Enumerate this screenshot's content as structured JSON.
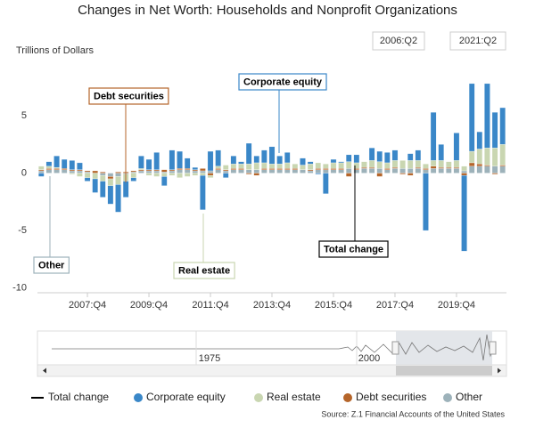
{
  "chart_data": {
    "type": "bar",
    "title": "Changes in Net Worth: Households and Nonprofit Organizations",
    "y_label": "Trillions of Dollars",
    "range": [
      "2006:Q2",
      "2021:Q2"
    ],
    "categories": [
      null,
      null,
      null,
      null,
      null,
      null,
      "2007:Q4",
      null,
      null,
      null,
      null,
      null,
      null,
      null,
      "2009:Q4",
      null,
      null,
      null,
      null,
      null,
      null,
      null,
      "2011:Q4",
      null,
      null,
      null,
      null,
      null,
      null,
      null,
      "2013:Q4",
      null,
      null,
      null,
      null,
      null,
      null,
      null,
      "2015:Q4",
      null,
      null,
      null,
      null,
      null,
      null,
      null,
      "2017:Q4",
      null,
      null,
      null,
      null,
      null,
      null,
      null,
      "2019:Q4",
      null,
      null,
      null,
      null,
      null,
      null
    ],
    "ylim": [
      -10.5,
      9.5
    ],
    "yticks": [
      5,
      0,
      -5,
      -10
    ],
    "series": [
      {
        "name": "Corporate equity",
        "color": "#3a87c8",
        "values": [
          -0.3,
          0.4,
          1.0,
          0.8,
          0.8,
          0.6,
          -0.3,
          -1.2,
          -1.4,
          -1.6,
          -2.4,
          -1.4,
          -0.3,
          1.1,
          0.9,
          1.5,
          -0.8,
          1.7,
          1.5,
          0.9,
          0.2,
          -3.0,
          1.7,
          1.4,
          -0.4,
          0.7,
          0.2,
          1.8,
          0.6,
          1.1,
          1.5,
          0.7,
          0.9,
          0,
          0.6,
          0.2,
          -0.1,
          -1.8,
          0.3,
          0.1,
          0.6,
          0.7,
          0,
          1.1,
          0.9,
          0.9,
          0.9,
          0,
          0.6,
          0.9,
          -5.0,
          4.2,
          1.4,
          0,
          2.4,
          -6.6,
          5.9,
          1.5,
          5.6,
          3.1,
          3.2
        ]
      },
      {
        "name": "Real estate",
        "color": "#c9d6b1",
        "values": [
          0.3,
          0.2,
          0.1,
          0,
          -0.1,
          -0.3,
          -0.4,
          -0.5,
          -0.5,
          -0.6,
          -0.7,
          -0.6,
          -0.4,
          0.1,
          -0.2,
          -0.3,
          -0.3,
          -0.2,
          -0.4,
          -0.3,
          -0.2,
          -0.2,
          -0.2,
          0.2,
          0.4,
          0.4,
          0.4,
          0.5,
          0.6,
          0.5,
          0.4,
          0.4,
          0.5,
          0.4,
          0.4,
          0.5,
          0.5,
          0.4,
          0.5,
          0.5,
          0.6,
          0.5,
          0.5,
          0.6,
          0.6,
          0.5,
          0.6,
          0.7,
          0.7,
          0.6,
          0.4,
          0.5,
          0.6,
          0.5,
          0.6,
          0.4,
          1.0,
          1.3,
          1.5,
          1.6,
          1.8
        ]
      },
      {
        "name": "Debt securities",
        "color": "#b5652a",
        "values": [
          0.1,
          0.1,
          0.1,
          0.1,
          0.1,
          0.1,
          0.1,
          0.2,
          0.1,
          -0.2,
          0.1,
          0.1,
          0.1,
          0.1,
          0.1,
          0.1,
          0.2,
          0.1,
          0.1,
          0.1,
          0.1,
          0.2,
          -0.2,
          0.1,
          0.1,
          0.1,
          0.1,
          -0.1,
          -0.2,
          0.1,
          0.1,
          0.1,
          0.1,
          0.1,
          0,
          0.1,
          0.1,
          0.1,
          0.1,
          0.1,
          -0.3,
          0.1,
          0.1,
          0.1,
          -0.3,
          0.1,
          0.1,
          -0.1,
          -0.2,
          0.1,
          0.1,
          0.2,
          0.1,
          0.1,
          0.1,
          -0.2,
          0.3,
          0.2,
          0.1,
          -0.1,
          0.1
        ]
      },
      {
        "name": "Other",
        "color": "#9db2ba",
        "values": [
          0.2,
          0.3,
          0.3,
          0.3,
          0.2,
          0.2,
          0.1,
          0,
          -0.2,
          -0.3,
          -0.3,
          -0.1,
          0.1,
          0.2,
          0.2,
          0.2,
          0.1,
          0.2,
          0.3,
          0.3,
          0.2,
          0.2,
          0.2,
          0.3,
          0.2,
          0.3,
          0.3,
          0.3,
          0.3,
          0.3,
          0.3,
          0.3,
          0.3,
          0.3,
          0.3,
          0.2,
          0.3,
          0.3,
          0.3,
          0.3,
          0.4,
          0.3,
          0.4,
          0.4,
          0.4,
          0.3,
          0.4,
          0.4,
          0.4,
          0.4,
          0.3,
          0.4,
          0.4,
          0.4,
          0.4,
          0.2,
          0.6,
          0.6,
          0.6,
          0.6,
          0.6
        ]
      }
    ],
    "line_series": {
      "name": "Total change",
      "color": "#000000",
      "values": [
        0.3,
        1.0,
        1.5,
        1.2,
        1.0,
        0.6,
        -0.5,
        -1.5,
        -2.0,
        -2.7,
        -3.3,
        -2.0,
        -0.5,
        1.5,
        1.0,
        1.5,
        -0.8,
        1.8,
        1.5,
        1.0,
        0.3,
        -2.8,
        1.5,
        2.0,
        0.3,
        1.5,
        1.0,
        2.5,
        1.3,
        2.0,
        2.3,
        1.5,
        1.8,
        0.8,
        1.3,
        1.0,
        0.8,
        -1.0,
        1.2,
        1.0,
        1.3,
        1.6,
        1.0,
        2.2,
        1.6,
        1.8,
        2.0,
        1.0,
        1.5,
        2.0,
        -4.2,
        5.3,
        2.5,
        1.0,
        3.5,
        -6.2,
        7.8,
        3.6,
        7.8,
        5.2,
        5.7
      ]
    },
    "annotations": [
      "Debt securities",
      "Corporate equity",
      "Other",
      "Real estate",
      "Total change"
    ],
    "navigator_labels": [
      "1975",
      "2000"
    ],
    "source": "Source: Z.1 Financial Accounts of the United States",
    "grid": false
  }
}
